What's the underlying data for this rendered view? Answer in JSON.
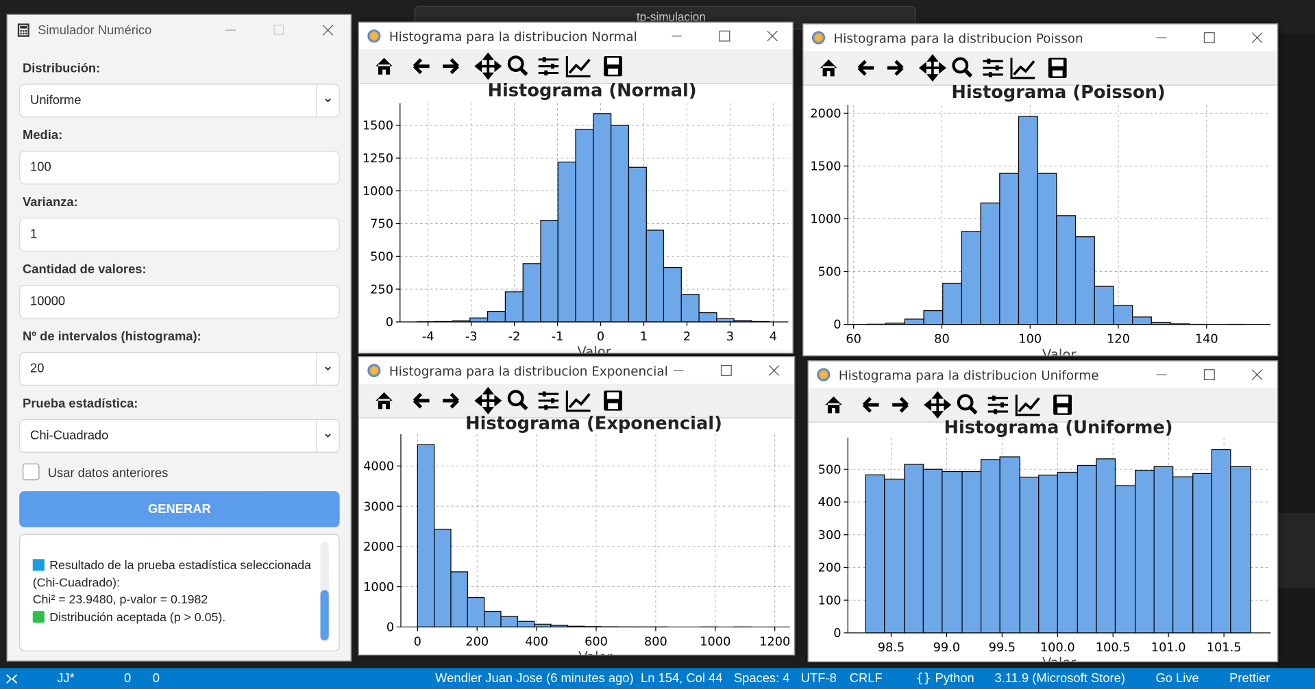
{
  "search": "tp-simulacion",
  "simulator": {
    "title": "Simulador Numérico",
    "fields": [
      {
        "label": "Distribución:",
        "value": "Uniforme",
        "dropdown": true
      },
      {
        "label": "Media:",
        "value": "100",
        "dropdown": false
      },
      {
        "label": "Varianza:",
        "value": "1",
        "dropdown": false
      },
      {
        "label": "Cantidad de valores:",
        "value": "10000",
        "dropdown": false
      },
      {
        "label": "Nº de intervalos (histograma):",
        "value": "20",
        "dropdown": true
      },
      {
        "label": "Prueba estadística:",
        "value": "Chi-Cuadrado",
        "dropdown": true
      }
    ],
    "checkbox": "Usar datos anteriores",
    "button": "GENERAR",
    "result": {
      "heading": "Resultado de la prueba estadística seleccionada (Chi-Cuadrado):",
      "stat": "Chi² = 23.9480, p-valor = 0.1982",
      "verdict": "Distribución aceptada (p > 0.05)."
    }
  },
  "windows": [
    "Histograma para la distribucion Normal",
    "Histograma para la distribucion Poisson",
    "Histograma para la distribucion Exponencial",
    "Histograma para la distribucion Uniforme"
  ],
  "chart_data": [
    {
      "type": "histogram",
      "title": "Histograma (Normal)",
      "xlabel": "Valor",
      "bins": [
        -4.25,
        -3.84,
        -3.43,
        -3.03,
        -2.62,
        -2.21,
        -1.8,
        -1.39,
        -0.99,
        -0.58,
        -0.17,
        0.24,
        0.65,
        1.06,
        1.46,
        1.87,
        2.28,
        2.69,
        3.09,
        3.5,
        3.91
      ],
      "values": [
        1,
        3,
        8,
        30,
        80,
        230,
        445,
        775,
        1220,
        1470,
        1590,
        1500,
        1180,
        700,
        415,
        210,
        70,
        25,
        10,
        3
      ],
      "color": "#6fa8e8",
      "edgecolor": "#000000",
      "xlim": [
        -4.65,
        4.35
      ],
      "ylim": [
        0,
        1670
      ],
      "xticks": [
        -4,
        -3,
        -2,
        -1,
        0,
        1,
        2,
        3,
        4
      ],
      "yticks": [
        0,
        250,
        500,
        750,
        1000,
        1250,
        1500
      ],
      "grid": true
    },
    {
      "type": "histogram",
      "title": "Histograma (Poisson)",
      "xlabel": "Valor",
      "bins": [
        63,
        67.3,
        71.6,
        75.9,
        80.2,
        84.5,
        88.8,
        93.1,
        97.4,
        101.7,
        106,
        110.3,
        114.6,
        118.9,
        123.2,
        127.5,
        131.8,
        136.1,
        140.4,
        144.7,
        149
      ],
      "values": [
        2,
        12,
        50,
        130,
        390,
        880,
        1150,
        1430,
        1970,
        1430,
        1030,
        830,
        360,
        180,
        70,
        20,
        5,
        1,
        0,
        1
      ],
      "color": "#6fa8e8",
      "edgecolor": "#000000",
      "xlim": [
        58.7,
        154.5
      ],
      "ylim": [
        0,
        2080
      ],
      "xticks": [
        60,
        80,
        100,
        120,
        140
      ],
      "yticks": [
        0,
        500,
        1000,
        1500,
        2000
      ],
      "grid": true
    },
    {
      "type": "histogram",
      "title": "Histograma (Exponencial)",
      "xlabel": "Valor",
      "bins": [
        0,
        56,
        112,
        168,
        224,
        280,
        336,
        392,
        448,
        504,
        560,
        616,
        672,
        728,
        784,
        840,
        896,
        952,
        1008,
        1064,
        1120
      ],
      "values": [
        4530,
        2430,
        1370,
        730,
        390,
        260,
        140,
        70,
        40,
        20,
        10,
        5,
        2,
        1,
        1,
        0,
        0,
        1,
        0,
        1
      ],
      "color": "#6fa8e8",
      "edgecolor": "#000000",
      "xlim": [
        -56,
        1251
      ],
      "ylim": [
        0,
        4790
      ],
      "xticks": [
        0,
        200,
        400,
        600,
        800,
        1000,
        1200
      ],
      "yticks": [
        0,
        1000,
        2000,
        3000,
        4000
      ],
      "grid": true
    },
    {
      "type": "histogram",
      "title": "Histograma (Uniforme)",
      "xlabel": "Valor",
      "bins": [
        98.27,
        98.44,
        98.62,
        98.79,
        98.96,
        99.14,
        99.31,
        99.48,
        99.66,
        99.83,
        100.0,
        100.18,
        100.35,
        100.52,
        100.7,
        100.87,
        101.04,
        101.22,
        101.39,
        101.56,
        101.74
      ],
      "values": [
        483,
        470,
        515,
        500,
        493,
        493,
        530,
        538,
        476,
        482,
        491,
        512,
        532,
        450,
        497,
        508,
        477,
        487,
        560,
        508
      ],
      "color": "#6fa8e8",
      "edgecolor": "#000000",
      "xlim": [
        98.11,
        101.92
      ],
      "ylim": [
        0,
        597
      ],
      "xticks": [
        98.5,
        {
          "value": 99,
          "label": "99.0"
        },
        99.5,
        {
          "value": 100,
          "label": "100.0"
        },
        100.5,
        {
          "value": 101,
          "label": "101.0"
        },
        101.5
      ],
      "yticks": [
        0,
        100,
        200,
        300,
        400,
        500
      ],
      "grid": true
    }
  ],
  "statusbar": {
    "branch": "JJ*",
    "errors": "0",
    "warnings": "0",
    "blame": "Wendler Juan Jose (6 minutes ago)",
    "position": "Ln 154, Col 44",
    "spaces": "Spaces: 4",
    "encoding": "UTF-8",
    "eol": "CRLF",
    "language": "Python",
    "interpreter": "3.11.9 (Microsoft Store)",
    "live": "Go Live",
    "formatter": "Prettier"
  }
}
